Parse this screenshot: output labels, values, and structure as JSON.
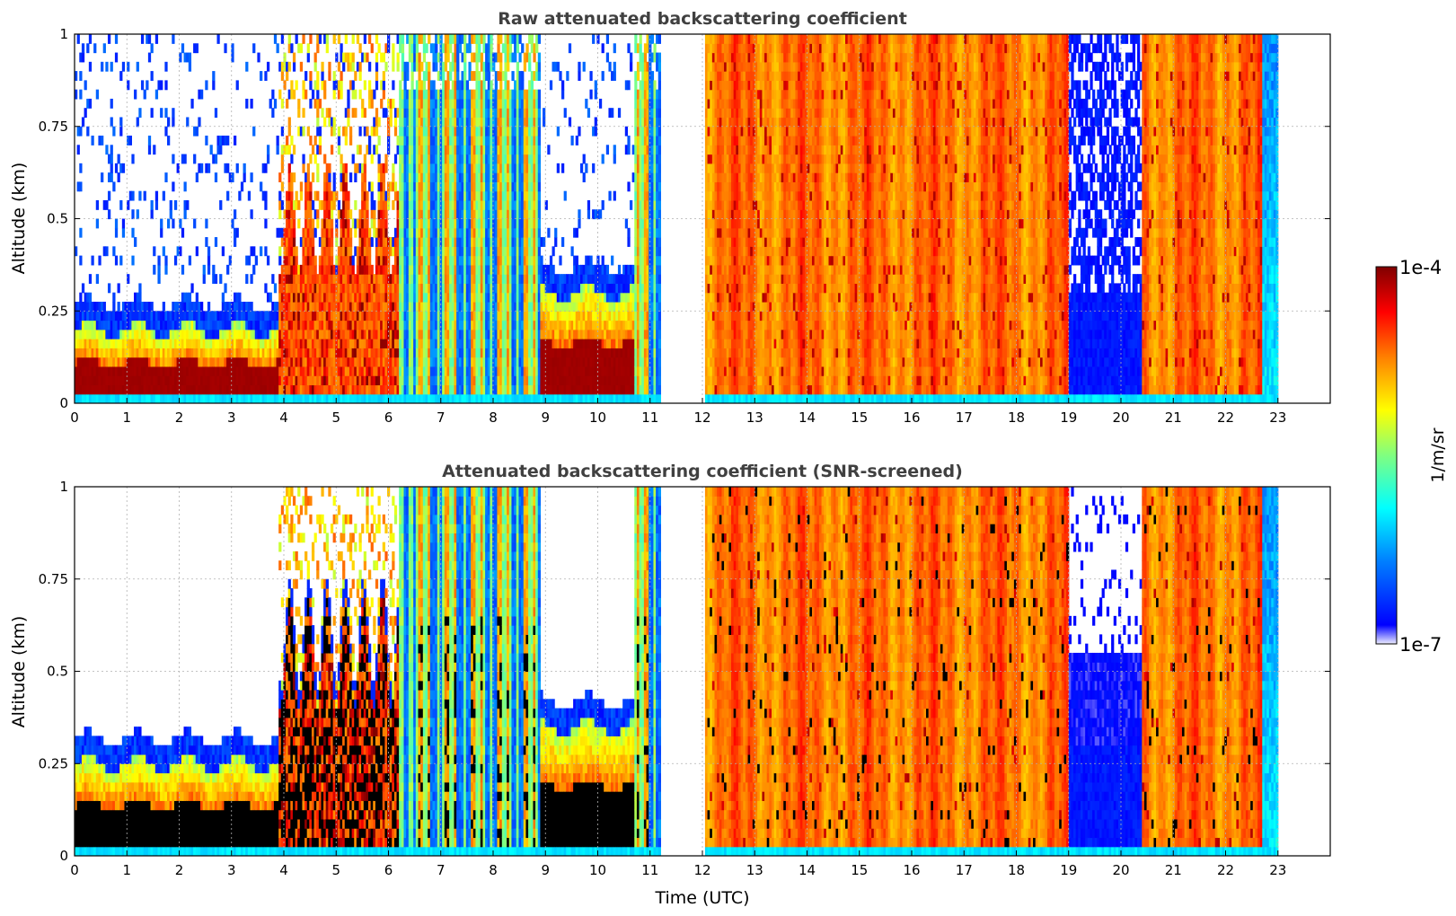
{
  "chart_data": [
    {
      "type": "heatmap",
      "title": "Raw attenuated backscattering coefficient",
      "xlabel": "",
      "ylabel": "Altitude (km)",
      "xlim": [
        0,
        24
      ],
      "ylim": [
        0,
        1
      ],
      "x_ticks": [
        "0",
        "1",
        "2",
        "3",
        "4",
        "5",
        "6",
        "7",
        "8",
        "9",
        "10",
        "11",
        "12",
        "13",
        "14",
        "15",
        "16",
        "17",
        "18",
        "19",
        "20",
        "21",
        "22",
        "23"
      ],
      "y_ticks": [
        "0",
        "0.25",
        "0.5",
        "0.75",
        "1"
      ],
      "grid": true,
      "data_gap_utc": [
        11.2,
        12.05
      ],
      "segments": [
        {
          "from": 0.0,
          "to": 3.9,
          "regime": "surface_layer",
          "layer_top_km": 0.2
        },
        {
          "from": 3.9,
          "to": 6.2,
          "regime": "deep_layer",
          "layer_top_km": 0.5
        },
        {
          "from": 6.2,
          "to": 8.9,
          "regime": "mixed_columns"
        },
        {
          "from": 8.9,
          "to": 10.7,
          "regime": "surface_layer",
          "layer_top_km": 0.3
        },
        {
          "from": 10.7,
          "to": 11.2,
          "regime": "mixed_columns"
        },
        {
          "from": 12.05,
          "to": 19.0,
          "regime": "full_column_orange"
        },
        {
          "from": 19.0,
          "to": 20.4,
          "regime": "low_blue"
        },
        {
          "from": 20.4,
          "to": 22.7,
          "regime": "full_column_orange"
        },
        {
          "from": 22.7,
          "to": 23.0,
          "regime": "cyan_fade"
        }
      ]
    },
    {
      "type": "heatmap",
      "title": "Attenuated backscattering coefficient (SNR-screened)",
      "xlabel": "Time (UTC)",
      "ylabel": "Altitude (km)",
      "xlim": [
        0,
        24
      ],
      "ylim": [
        0,
        1
      ],
      "x_ticks": [
        "0",
        "1",
        "2",
        "3",
        "4",
        "5",
        "6",
        "7",
        "8",
        "9",
        "10",
        "11",
        "12",
        "13",
        "14",
        "15",
        "16",
        "17",
        "18",
        "19",
        "20",
        "21",
        "22",
        "23"
      ],
      "y_ticks": [
        "0",
        "0.25",
        "0.5",
        "0.75",
        "1"
      ],
      "grid": true,
      "data_gap_utc": [
        11.2,
        12.05
      ],
      "segments": [
        {
          "from": 0.0,
          "to": 3.9,
          "regime": "surface_layer_screened",
          "layer_top_km": 0.25
        },
        {
          "from": 3.9,
          "to": 6.2,
          "regime": "deep_layer_screened",
          "layer_top_km": 0.55
        },
        {
          "from": 6.2,
          "to": 8.9,
          "regime": "mixed_columns_screened"
        },
        {
          "from": 8.9,
          "to": 10.7,
          "regime": "surface_layer_screened",
          "layer_top_km": 0.35
        },
        {
          "from": 10.7,
          "to": 11.2,
          "regime": "mixed_columns_screened"
        },
        {
          "from": 12.05,
          "to": 19.0,
          "regime": "full_column_orange"
        },
        {
          "from": 19.0,
          "to": 20.4,
          "regime": "low_blue_screened"
        },
        {
          "from": 20.4,
          "to": 22.7,
          "regime": "full_column_orange"
        },
        {
          "from": 22.7,
          "to": 23.0,
          "regime": "cyan_fade"
        }
      ]
    }
  ],
  "colorbar": {
    "label": "1/m/sr",
    "max_label": "1e-4",
    "min_label": "1e-7",
    "scale": "log",
    "range": [
      1e-07,
      0.0001
    ],
    "colormap": "jet",
    "colors": [
      "#eeeeff",
      "#0000ff",
      "#0080ff",
      "#00ffff",
      "#80ff80",
      "#ffff00",
      "#ff8000",
      "#ff0000",
      "#800000"
    ]
  },
  "shared": {
    "xlabel": "Time (UTC)"
  }
}
